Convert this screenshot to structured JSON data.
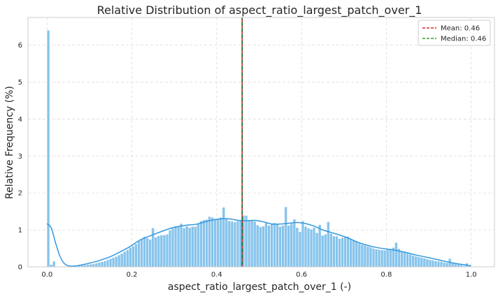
{
  "chart_data": {
    "type": "bar",
    "title": "Relative Distribution of aspect_ratio_largest_patch_over_1",
    "xlabel": "aspect_ratio_largest_patch_over_1 (-)",
    "ylabel": "Relative Frequency (%)",
    "xlim": [
      -0.045,
      1.055
    ],
    "ylim": [
      0,
      6.75
    ],
    "x_ticks": [
      "0.0",
      "0.2",
      "0.4",
      "0.6",
      "0.8",
      "1.0"
    ],
    "y_ticks": [
      "0",
      "1",
      "2",
      "3",
      "4",
      "5",
      "6"
    ],
    "grid": true,
    "bin_width": 0.00667,
    "bin_starts": [
      0.0,
      0.00667,
      0.01333,
      0.02,
      0.02667,
      0.03333,
      0.04,
      0.04667,
      0.05333,
      0.06,
      0.06667,
      0.07333,
      0.08,
      0.08667,
      0.09333,
      0.1,
      0.10667,
      0.11333,
      0.12,
      0.12667,
      0.13333,
      0.14,
      0.14667,
      0.15333,
      0.16,
      0.16667,
      0.17333,
      0.18,
      0.18667,
      0.19333,
      0.2,
      0.20667,
      0.21333,
      0.22,
      0.22667,
      0.23333,
      0.24,
      0.24667,
      0.25333,
      0.26,
      0.26667,
      0.27333,
      0.28,
      0.28667,
      0.29333,
      0.3,
      0.30667,
      0.31333,
      0.32,
      0.32667,
      0.33333,
      0.34,
      0.34667,
      0.35333,
      0.36,
      0.36667,
      0.37333,
      0.38,
      0.38667,
      0.39333,
      0.4,
      0.40667,
      0.41333,
      0.42,
      0.42667,
      0.43333,
      0.44,
      0.44667,
      0.45333,
      0.46,
      0.46667,
      0.47333,
      0.48,
      0.48667,
      0.49333,
      0.5,
      0.50667,
      0.51333,
      0.52,
      0.52667,
      0.53333,
      0.54,
      0.54667,
      0.55333,
      0.56,
      0.56667,
      0.57333,
      0.58,
      0.58667,
      0.59333,
      0.6,
      0.60667,
      0.61333,
      0.62,
      0.62667,
      0.63333,
      0.64,
      0.64667,
      0.65333,
      0.66,
      0.66667,
      0.67333,
      0.68,
      0.68667,
      0.69333,
      0.7,
      0.70667,
      0.71333,
      0.72,
      0.72667,
      0.73333,
      0.74,
      0.74667,
      0.75333,
      0.76,
      0.76667,
      0.77333,
      0.78,
      0.78667,
      0.79333,
      0.8,
      0.80667,
      0.81333,
      0.82,
      0.82667,
      0.83333,
      0.84,
      0.84667,
      0.85333,
      0.86,
      0.86667,
      0.87333,
      0.88,
      0.88667,
      0.89333,
      0.9,
      0.90667,
      0.91333,
      0.92,
      0.92667,
      0.93333,
      0.94,
      0.94667,
      0.95333,
      0.96,
      0.96667,
      0.97333,
      0.98,
      0.98667,
      0.99333
    ],
    "values": [
      6.4,
      0.06,
      0.15,
      0.0,
      0.0,
      0.0,
      0.0,
      0.0,
      0.0,
      0.0,
      0.02,
      0.03,
      0.04,
      0.05,
      0.06,
      0.07,
      0.08,
      0.1,
      0.12,
      0.14,
      0.16,
      0.19,
      0.22,
      0.25,
      0.28,
      0.32,
      0.36,
      0.41,
      0.46,
      0.52,
      0.56,
      0.62,
      0.7,
      0.76,
      0.82,
      0.78,
      0.74,
      1.05,
      0.8,
      0.84,
      0.86,
      0.86,
      0.88,
      0.99,
      1.04,
      1.1,
      1.1,
      1.17,
      1.05,
      1.1,
      1.06,
      1.09,
      1.09,
      1.16,
      1.24,
      1.27,
      1.28,
      1.36,
      1.34,
      1.29,
      1.29,
      1.34,
      1.61,
      1.29,
      1.24,
      1.23,
      1.21,
      1.24,
      1.25,
      1.39,
      1.39,
      1.27,
      1.26,
      1.23,
      1.13,
      1.08,
      1.1,
      1.19,
      1.12,
      1.16,
      1.19,
      1.17,
      1.09,
      1.12,
      1.62,
      1.12,
      1.17,
      1.29,
      1.06,
      0.95,
      1.24,
      1.09,
      1.05,
      1.02,
      1.06,
      0.92,
      1.14,
      0.85,
      0.88,
      1.22,
      0.9,
      0.83,
      0.83,
      0.76,
      0.79,
      0.8,
      0.82,
      0.76,
      0.72,
      0.69,
      0.64,
      0.6,
      0.58,
      0.55,
      0.53,
      0.5,
      0.48,
      0.47,
      0.46,
      0.45,
      0.47,
      0.48,
      0.52,
      0.66,
      0.49,
      0.42,
      0.4,
      0.37,
      0.34,
      0.31,
      0.29,
      0.27,
      0.25,
      0.23,
      0.21,
      0.19,
      0.18,
      0.16,
      0.15,
      0.14,
      0.12,
      0.11,
      0.22,
      0.1,
      0.08,
      0.07,
      0.05,
      0.03,
      0.1,
      0.02
    ],
    "kde": {
      "x": [
        0.0,
        0.01,
        0.02,
        0.03,
        0.04,
        0.05,
        0.06,
        0.07,
        0.08,
        0.1,
        0.12,
        0.15,
        0.18,
        0.2,
        0.22,
        0.25,
        0.28,
        0.3,
        0.33,
        0.35,
        0.37,
        0.39,
        0.41,
        0.43,
        0.45,
        0.47,
        0.49,
        0.51,
        0.53,
        0.55,
        0.57,
        0.59,
        0.61,
        0.63,
        0.65,
        0.67,
        0.69,
        0.71,
        0.73,
        0.75,
        0.77,
        0.79,
        0.81,
        0.83,
        0.85,
        0.87,
        0.9,
        0.93,
        0.96,
        1.0
      ],
      "y": [
        1.17,
        1.05,
        0.65,
        0.3,
        0.1,
        0.03,
        0.02,
        0.03,
        0.05,
        0.1,
        0.16,
        0.28,
        0.45,
        0.58,
        0.73,
        0.87,
        1.0,
        1.07,
        1.13,
        1.15,
        1.21,
        1.27,
        1.3,
        1.3,
        1.26,
        1.25,
        1.26,
        1.22,
        1.16,
        1.16,
        1.18,
        1.2,
        1.17,
        1.1,
        1.0,
        0.93,
        0.86,
        0.78,
        0.68,
        0.6,
        0.54,
        0.5,
        0.47,
        0.43,
        0.38,
        0.32,
        0.25,
        0.17,
        0.1,
        0.03
      ]
    },
    "mean": 0.46,
    "median": 0.46,
    "legend": [
      {
        "label": "Mean: 0.46",
        "color": "#d62728",
        "style": "dashed"
      },
      {
        "label": "Median: 0.46",
        "color": "#2ca02c",
        "style": "dashed"
      }
    ],
    "legend_position": "top-right",
    "colors": {
      "bar": "#87c4ec",
      "kde": "#3498db",
      "grid": "#dddddd",
      "spine": "#cccccc"
    }
  }
}
